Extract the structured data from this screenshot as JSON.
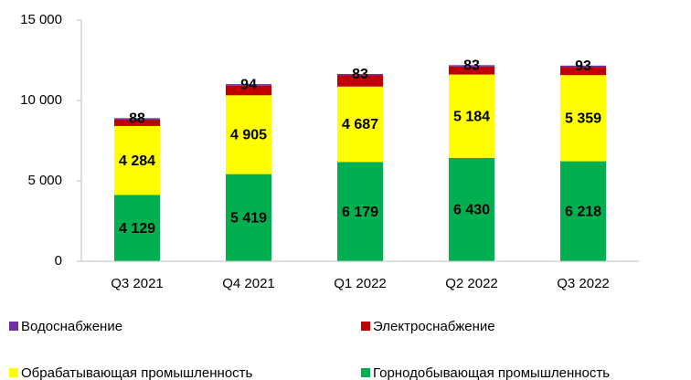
{
  "chart_data": {
    "type": "stacked_bar",
    "categories": [
      "Q3 2021",
      "Q4 2021",
      "Q1 2022",
      "Q2 2022",
      "Q3 2022"
    ],
    "series": [
      {
        "name": "Горнодобывающая промышленность",
        "color": "#00b050",
        "values": [
          4129,
          5419,
          6179,
          6430,
          6218
        ],
        "value_labels": [
          "4 129",
          "5 419",
          "6 179",
          "6 430",
          "6 218"
        ]
      },
      {
        "name": "Обрабатывающая промышленность",
        "color": "#ffff00",
        "values": [
          4284,
          4905,
          4687,
          5184,
          5359
        ],
        "value_labels": [
          "4 284",
          "4 905",
          "4 687",
          "5 184",
          "5 359"
        ]
      },
      {
        "name": "Электроснабжение",
        "color": "#c00000",
        "values": [
          400,
          600,
          700,
          500,
          500
        ]
      },
      {
        "name": "Водоснабжение",
        "color": "#7030a0",
        "values": [
          88,
          94,
          83,
          83,
          93
        ]
      }
    ],
    "ylim": [
      0,
      15000
    ],
    "yticks": [
      0,
      {
        "value": 5000,
        "label": "5 000"
      },
      {
        "value": 10000,
        "label": "10 000"
      },
      {
        "value": 15000,
        "label": "15 000"
      }
    ]
  }
}
